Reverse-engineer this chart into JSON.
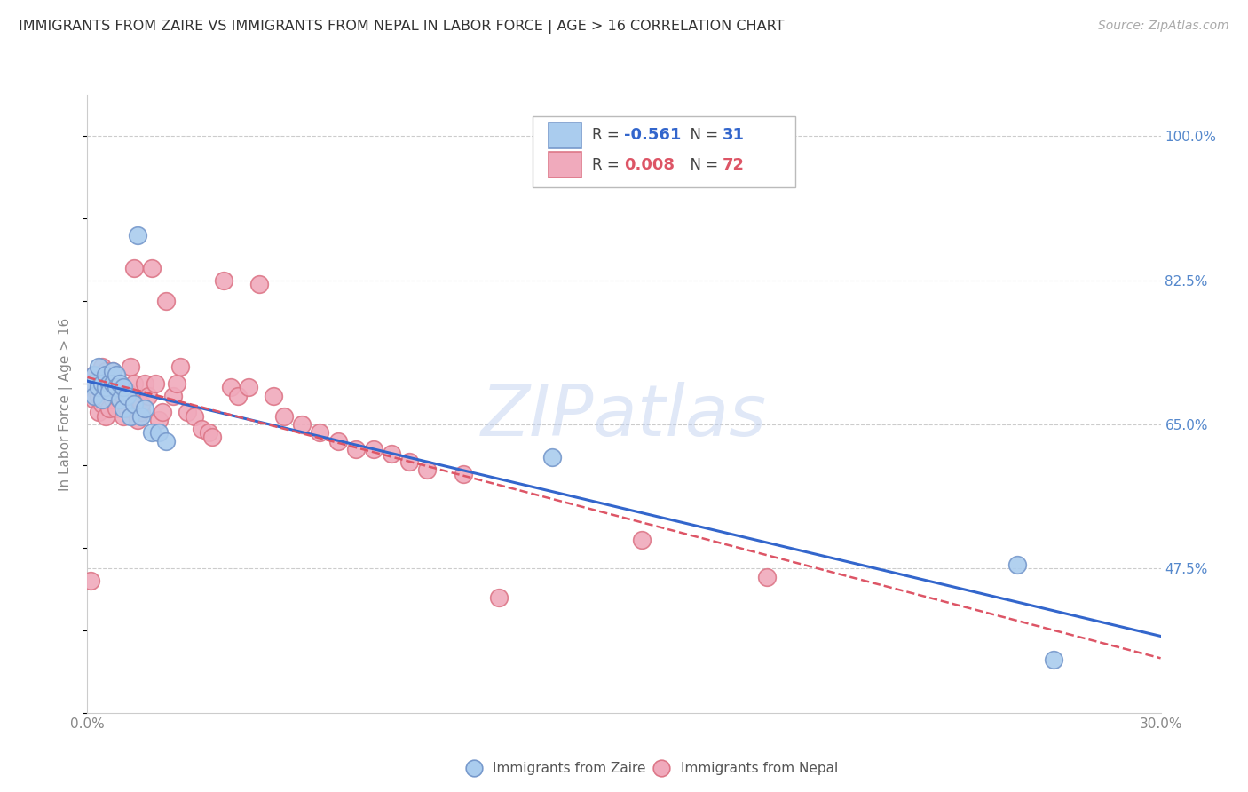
{
  "title": "IMMIGRANTS FROM ZAIRE VS IMMIGRANTS FROM NEPAL IN LABOR FORCE | AGE > 16 CORRELATION CHART",
  "source": "Source: ZipAtlas.com",
  "ylabel": "In Labor Force | Age > 16",
  "xlim": [
    0.0,
    0.3
  ],
  "ylim": [
    0.3,
    1.05
  ],
  "xticks": [
    0.0,
    0.05,
    0.1,
    0.15,
    0.2,
    0.25,
    0.3
  ],
  "xticklabels": [
    "0.0%",
    "",
    "",
    "",
    "",
    "",
    "30.0%"
  ],
  "yticks_right": [
    0.475,
    0.65,
    0.825,
    1.0
  ],
  "yticklabels_right": [
    "47.5%",
    "65.0%",
    "82.5%",
    "100.0%"
  ],
  "grid_color": "#cccccc",
  "background_color": "#ffffff",
  "zaire_color": "#aaccee",
  "zaire_edge_color": "#7799cc",
  "nepal_color": "#f0aabc",
  "nepal_edge_color": "#dd7788",
  "zaire_R": -0.561,
  "zaire_N": 31,
  "nepal_R": 0.008,
  "nepal_N": 72,
  "zaire_line_color": "#3366cc",
  "nepal_line_color": "#dd5566",
  "watermark": "ZIPatlas",
  "legend_label_zaire": "Immigrants from Zaire",
  "legend_label_nepal": "Immigrants from Nepal",
  "zaire_scatter_x": [
    0.001,
    0.002,
    0.002,
    0.003,
    0.003,
    0.004,
    0.004,
    0.005,
    0.005,
    0.006,
    0.006,
    0.007,
    0.007,
    0.008,
    0.008,
    0.009,
    0.009,
    0.01,
    0.01,
    0.011,
    0.012,
    0.013,
    0.015,
    0.016,
    0.018,
    0.02,
    0.022,
    0.014,
    0.26,
    0.27,
    0.13
  ],
  "zaire_scatter_y": [
    0.7,
    0.71,
    0.685,
    0.72,
    0.695,
    0.7,
    0.68,
    0.71,
    0.695,
    0.7,
    0.69,
    0.715,
    0.7,
    0.71,
    0.695,
    0.7,
    0.68,
    0.695,
    0.67,
    0.685,
    0.66,
    0.675,
    0.66,
    0.67,
    0.64,
    0.64,
    0.63,
    0.88,
    0.48,
    0.365,
    0.61
  ],
  "nepal_scatter_x": [
    0.001,
    0.001,
    0.002,
    0.002,
    0.002,
    0.003,
    0.003,
    0.003,
    0.004,
    0.004,
    0.004,
    0.004,
    0.005,
    0.005,
    0.005,
    0.005,
    0.006,
    0.006,
    0.006,
    0.007,
    0.007,
    0.007,
    0.008,
    0.008,
    0.008,
    0.009,
    0.009,
    0.01,
    0.01,
    0.011,
    0.011,
    0.012,
    0.012,
    0.013,
    0.013,
    0.014,
    0.015,
    0.015,
    0.016,
    0.017,
    0.018,
    0.019,
    0.02,
    0.021,
    0.022,
    0.024,
    0.025,
    0.026,
    0.028,
    0.03,
    0.032,
    0.034,
    0.035,
    0.038,
    0.04,
    0.042,
    0.045,
    0.048,
    0.052,
    0.055,
    0.06,
    0.065,
    0.07,
    0.075,
    0.08,
    0.085,
    0.09,
    0.095,
    0.105,
    0.115,
    0.155,
    0.19
  ],
  "nepal_scatter_y": [
    0.46,
    0.695,
    0.68,
    0.7,
    0.71,
    0.665,
    0.685,
    0.7,
    0.675,
    0.69,
    0.7,
    0.72,
    0.66,
    0.68,
    0.695,
    0.715,
    0.67,
    0.69,
    0.705,
    0.68,
    0.695,
    0.715,
    0.67,
    0.685,
    0.7,
    0.68,
    0.695,
    0.66,
    0.685,
    0.67,
    0.69,
    0.68,
    0.72,
    0.7,
    0.84,
    0.655,
    0.665,
    0.675,
    0.7,
    0.685,
    0.84,
    0.7,
    0.655,
    0.665,
    0.8,
    0.685,
    0.7,
    0.72,
    0.665,
    0.66,
    0.645,
    0.64,
    0.635,
    0.825,
    0.695,
    0.685,
    0.695,
    0.82,
    0.685,
    0.66,
    0.65,
    0.64,
    0.63,
    0.62,
    0.62,
    0.615,
    0.605,
    0.595,
    0.59,
    0.44,
    0.51,
    0.465
  ]
}
